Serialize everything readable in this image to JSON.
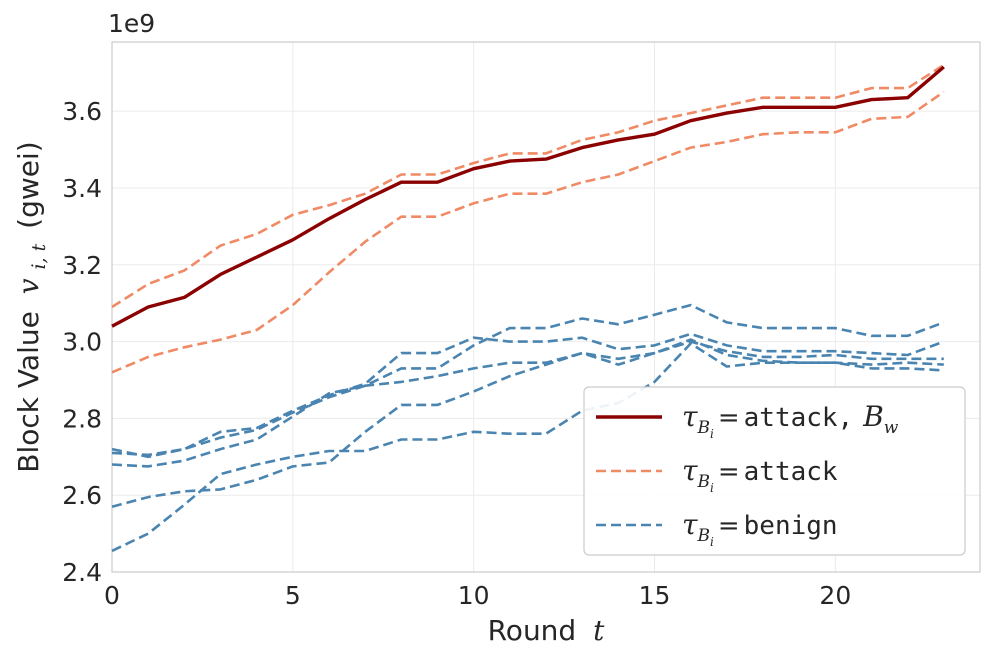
{
  "chart_data": {
    "type": "line",
    "xlabel": "Round",
    "xlabel_var": "t",
    "ylabel": "Block Value",
    "ylabel_var": "v",
    "ylabel_sub": "i, t",
    "ylabel_unit": "(gwei)",
    "offset_text": "1e9",
    "xlim": [
      0,
      24
    ],
    "ylim": [
      2.4,
      3.78
    ],
    "xticks": [
      0,
      5,
      10,
      15,
      20
    ],
    "xtick_labels": [
      "0",
      "5",
      "10",
      "15",
      "20"
    ],
    "yticks": [
      2.4,
      2.6,
      2.8,
      3.0,
      3.2,
      3.4,
      3.6
    ],
    "ytick_labels": [
      "2.4",
      "2.6",
      "2.8",
      "3.0",
      "3.2",
      "3.4",
      "3.6"
    ],
    "grid": true,
    "legend_position": "lower-right",
    "x": [
      0,
      1,
      2,
      3,
      4,
      5,
      6,
      7,
      8,
      9,
      10,
      11,
      12,
      13,
      14,
      15,
      16,
      17,
      18,
      19,
      20,
      21,
      22,
      23
    ],
    "series": [
      {
        "name": "attack_bw",
        "group": "attack_bw",
        "color": "#8b0000",
        "style": "solid",
        "values": [
          3.04,
          3.09,
          3.115,
          3.175,
          3.22,
          3.265,
          3.32,
          3.37,
          3.415,
          3.415,
          3.45,
          3.47,
          3.475,
          3.505,
          3.525,
          3.54,
          3.575,
          3.595,
          3.61,
          3.61,
          3.61,
          3.63,
          3.635,
          3.715
        ]
      },
      {
        "name": "attack_1",
        "group": "attack",
        "color": "#f08a65",
        "style": "dashed",
        "values": [
          3.09,
          3.15,
          3.185,
          3.25,
          3.28,
          3.33,
          3.355,
          3.385,
          3.435,
          3.435,
          3.465,
          3.49,
          3.49,
          3.525,
          3.545,
          3.575,
          3.595,
          3.615,
          3.635,
          3.635,
          3.635,
          3.66,
          3.66,
          3.72
        ]
      },
      {
        "name": "attack_2",
        "group": "attack",
        "color": "#f08a65",
        "style": "dashed",
        "values": [
          2.92,
          2.96,
          2.985,
          3.005,
          3.03,
          3.095,
          3.18,
          3.26,
          3.325,
          3.325,
          3.36,
          3.385,
          3.385,
          3.415,
          3.435,
          3.47,
          3.505,
          3.52,
          3.54,
          3.545,
          3.545,
          3.58,
          3.585,
          3.65
        ]
      },
      {
        "name": "benign_1",
        "group": "benign",
        "color": "#4a84b0",
        "style": "dashed",
        "values": [
          2.71,
          2.705,
          2.72,
          2.75,
          2.77,
          2.815,
          2.855,
          2.885,
          2.93,
          2.93,
          2.99,
          3.035,
          3.035,
          3.06,
          3.045,
          3.07,
          3.095,
          3.05,
          3.035,
          3.035,
          3.035,
          3.015,
          3.015,
          3.05
        ]
      },
      {
        "name": "benign_2",
        "group": "benign",
        "color": "#4a84b0",
        "style": "dashed",
        "values": [
          2.72,
          2.7,
          2.72,
          2.765,
          2.775,
          2.82,
          2.86,
          2.89,
          2.97,
          2.97,
          3.01,
          3.0,
          3.0,
          3.01,
          2.98,
          2.99,
          3.02,
          2.99,
          2.975,
          2.975,
          2.975,
          2.97,
          2.965,
          3.0
        ]
      },
      {
        "name": "benign_3",
        "group": "benign",
        "color": "#4a84b0",
        "style": "dashed",
        "values": [
          2.68,
          2.675,
          2.69,
          2.72,
          2.745,
          2.805,
          2.865,
          2.885,
          2.895,
          2.91,
          2.93,
          2.945,
          2.945,
          2.97,
          2.955,
          2.97,
          3.0,
          2.975,
          2.96,
          2.96,
          2.965,
          2.955,
          2.955,
          2.955
        ]
      },
      {
        "name": "benign_4",
        "group": "benign",
        "color": "#4a84b0",
        "style": "dashed",
        "values": [
          2.57,
          2.595,
          2.61,
          2.615,
          2.64,
          2.675,
          2.685,
          2.765,
          2.835,
          2.835,
          2.87,
          2.91,
          2.94,
          2.97,
          2.94,
          2.97,
          3.005,
          2.965,
          2.95,
          2.945,
          2.945,
          2.94,
          2.945,
          2.94
        ]
      },
      {
        "name": "benign_5",
        "group": "benign",
        "color": "#4a84b0",
        "style": "dashed",
        "values": [
          2.455,
          2.5,
          2.575,
          2.655,
          2.68,
          2.7,
          2.715,
          2.715,
          2.745,
          2.745,
          2.765,
          2.76,
          2.76,
          2.82,
          2.84,
          2.895,
          2.995,
          2.935,
          2.945,
          2.945,
          2.945,
          2.93,
          2.93,
          2.925
        ]
      }
    ],
    "legend": [
      {
        "group": "attack_bw",
        "color": "#8b0000",
        "style": "solid",
        "symbol": "τ",
        "symbol_sub": "B",
        "symbol_subsub": "i",
        "eq": "=",
        "text": "attack,",
        "extra": "B",
        "extra_sub": "w"
      },
      {
        "group": "attack",
        "color": "#f08a65",
        "style": "dashed",
        "symbol": "τ",
        "symbol_sub": "B",
        "symbol_subsub": "i",
        "eq": "=",
        "text": "attack"
      },
      {
        "group": "benign",
        "color": "#4a84b0",
        "style": "dashed",
        "symbol": "τ",
        "symbol_sub": "B",
        "symbol_subsub": "i",
        "eq": "=",
        "text": "benign"
      }
    ]
  }
}
